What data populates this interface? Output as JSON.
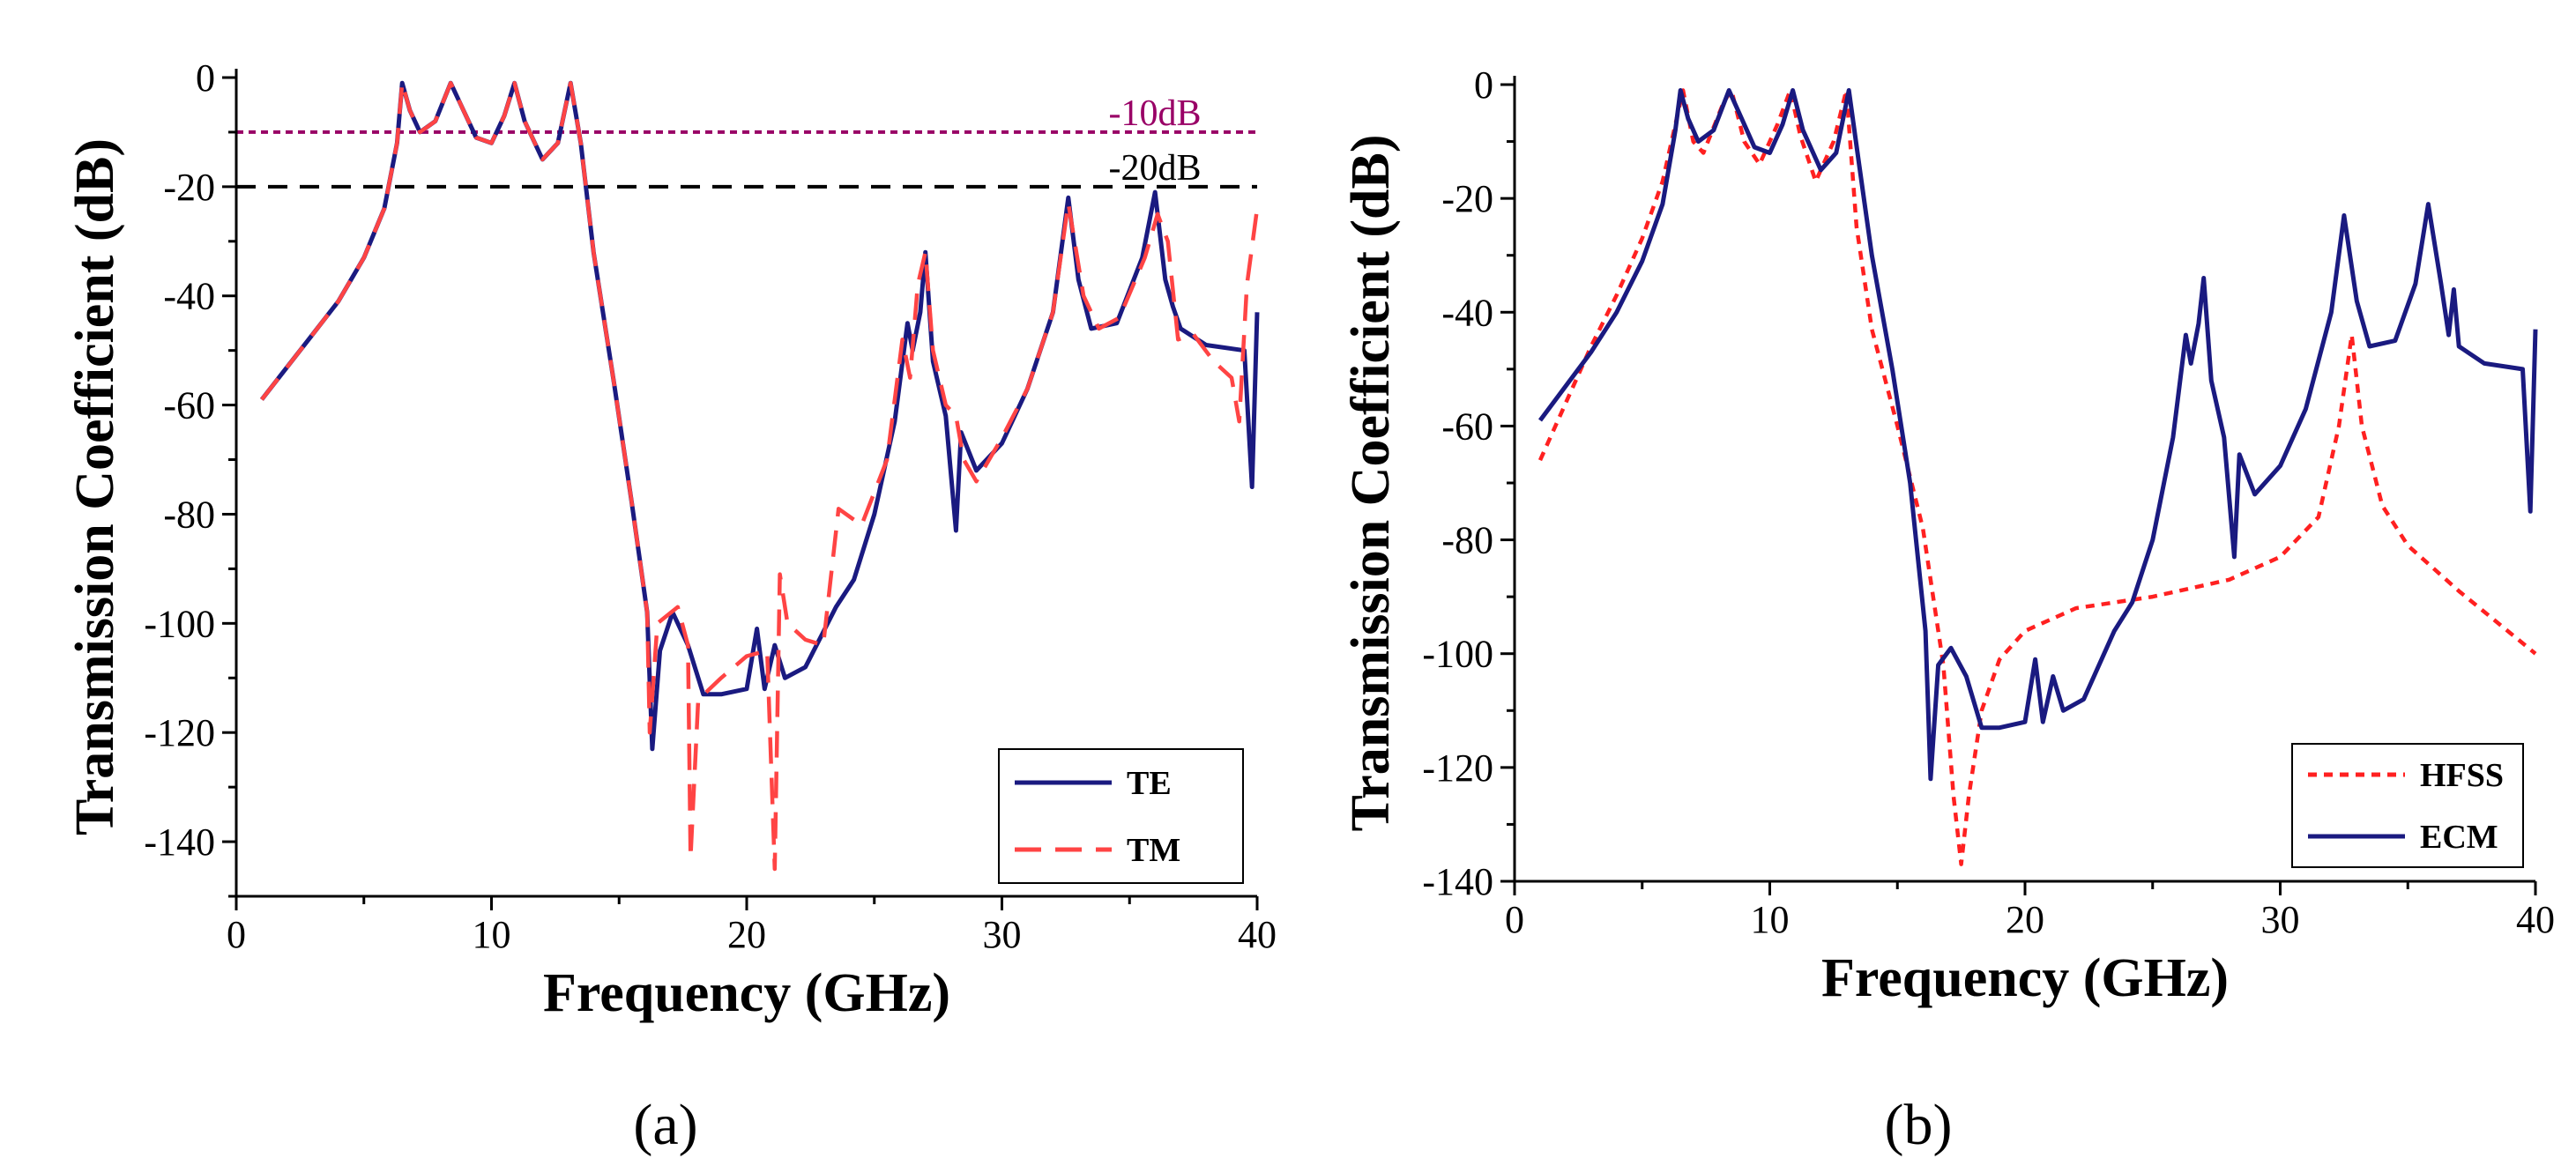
{
  "figure": {
    "captions": [
      "(a)",
      "(b)"
    ]
  },
  "chart_data": [
    {
      "type": "line",
      "panel_label": "(a)",
      "xlabel": "Frequency (GHz)",
      "ylabel": "Transmission Coefficient (dB)",
      "xlim": [
        0,
        40
      ],
      "ylim": [
        -150,
        0
      ],
      "xticks": [
        0,
        10,
        20,
        30,
        40
      ],
      "yticks": [
        0,
        -20,
        -40,
        -60,
        -80,
        -100,
        -120,
        -140
      ],
      "legend_position": "bottom-right",
      "reference_lines": [
        {
          "label": "-10dB",
          "value": -10,
          "color": "#990066",
          "style": "dotted"
        },
        {
          "label": "-20dB",
          "value": -20,
          "color": "#000000",
          "style": "dashed"
        }
      ],
      "series": [
        {
          "name": "TE",
          "color": "#1a1a80",
          "style": "solid",
          "points": [
            [
              1,
              -59
            ],
            [
              2,
              -53
            ],
            [
              3,
              -47
            ],
            [
              4,
              -41
            ],
            [
              5,
              -33
            ],
            [
              5.8,
              -24
            ],
            [
              6.3,
              -12
            ],
            [
              6.5,
              -1
            ],
            [
              6.8,
              -6
            ],
            [
              7.2,
              -10
            ],
            [
              7.8,
              -8
            ],
            [
              8.4,
              -1
            ],
            [
              8.8,
              -5
            ],
            [
              9.4,
              -11
            ],
            [
              10,
              -12
            ],
            [
              10.5,
              -7
            ],
            [
              10.9,
              -1
            ],
            [
              11.3,
              -8
            ],
            [
              12,
              -15
            ],
            [
              12.6,
              -12
            ],
            [
              13.1,
              -1
            ],
            [
              13.5,
              -12
            ],
            [
              14,
              -32
            ],
            [
              14.8,
              -56
            ],
            [
              15.5,
              -78
            ],
            [
              16.1,
              -98
            ],
            [
              16.3,
              -123
            ],
            [
              16.6,
              -105
            ],
            [
              17.1,
              -98
            ],
            [
              17.7,
              -104
            ],
            [
              18.3,
              -113
            ],
            [
              19,
              -113
            ],
            [
              20,
              -112
            ],
            [
              20.4,
              -101
            ],
            [
              20.7,
              -112
            ],
            [
              21.1,
              -104
            ],
            [
              21.5,
              -110
            ],
            [
              22.3,
              -108
            ],
            [
              23.5,
              -97
            ],
            [
              24.2,
              -92
            ],
            [
              25,
              -80
            ],
            [
              25.8,
              -63
            ],
            [
              26.3,
              -45
            ],
            [
              26.5,
              -50
            ],
            [
              26.8,
              -43
            ],
            [
              27,
              -32
            ],
            [
              27.3,
              -52
            ],
            [
              27.8,
              -62
            ],
            [
              28.2,
              -83
            ],
            [
              28.4,
              -65
            ],
            [
              29,
              -72
            ],
            [
              30,
              -67
            ],
            [
              31,
              -57
            ],
            [
              32,
              -43
            ],
            [
              32.6,
              -22
            ],
            [
              33,
              -37
            ],
            [
              33.5,
              -46
            ],
            [
              34.5,
              -45
            ],
            [
              35.5,
              -33
            ],
            [
              36,
              -21
            ],
            [
              36.4,
              -37
            ],
            [
              36.7,
              -42
            ],
            [
              37,
              -46
            ],
            [
              38,
              -49
            ],
            [
              39.5,
              -50
            ],
            [
              39.8,
              -75
            ],
            [
              40,
              -43
            ]
          ]
        },
        {
          "name": "TM",
          "color": "#ff4444",
          "style": "dashed",
          "points": [
            [
              1,
              -59
            ],
            [
              2,
              -53
            ],
            [
              3,
              -47
            ],
            [
              4,
              -41
            ],
            [
              5,
              -33
            ],
            [
              5.8,
              -24
            ],
            [
              6.3,
              -12
            ],
            [
              6.5,
              -1
            ],
            [
              6.8,
              -6
            ],
            [
              7.2,
              -10
            ],
            [
              7.8,
              -8
            ],
            [
              8.4,
              -1
            ],
            [
              8.8,
              -5
            ],
            [
              9.4,
              -11
            ],
            [
              10,
              -12
            ],
            [
              10.5,
              -7
            ],
            [
              10.9,
              -1
            ],
            [
              11.3,
              -8
            ],
            [
              12,
              -15
            ],
            [
              12.6,
              -12
            ],
            [
              13.1,
              -1
            ],
            [
              13.5,
              -12
            ],
            [
              14,
              -32
            ],
            [
              14.8,
              -56
            ],
            [
              15.5,
              -78
            ],
            [
              16.1,
              -98
            ],
            [
              16.2,
              -120
            ],
            [
              16.5,
              -100
            ],
            [
              17.3,
              -97
            ],
            [
              17.7,
              -104
            ],
            [
              17.8,
              -143
            ],
            [
              18.1,
              -114
            ],
            [
              19,
              -110
            ],
            [
              20,
              -106
            ],
            [
              20.8,
              -105
            ],
            [
              21.1,
              -145
            ],
            [
              21.3,
              -91
            ],
            [
              21.6,
              -100
            ],
            [
              22.3,
              -103
            ],
            [
              23,
              -104
            ],
            [
              23.6,
              -79
            ],
            [
              24.5,
              -82
            ],
            [
              25.5,
              -70
            ],
            [
              26.1,
              -48
            ],
            [
              26.4,
              -55
            ],
            [
              26.7,
              -38
            ],
            [
              27,
              -32
            ],
            [
              27.3,
              -50
            ],
            [
              27.8,
              -60
            ],
            [
              28.2,
              -62
            ],
            [
              28.5,
              -70
            ],
            [
              29,
              -74
            ],
            [
              30,
              -66
            ],
            [
              31,
              -57
            ],
            [
              32,
              -43
            ],
            [
              32.6,
              -23
            ],
            [
              33.2,
              -40
            ],
            [
              33.8,
              -46
            ],
            [
              34.6,
              -44
            ],
            [
              35.6,
              -33
            ],
            [
              36.1,
              -25
            ],
            [
              36.5,
              -30
            ],
            [
              36.9,
              -48
            ],
            [
              37.5,
              -47
            ],
            [
              38.3,
              -52
            ],
            [
              39,
              -55
            ],
            [
              39.3,
              -63
            ],
            [
              39.6,
              -38
            ],
            [
              40,
              -24
            ]
          ]
        }
      ]
    },
    {
      "type": "line",
      "panel_label": "(b)",
      "xlabel": "Frequency (GHz)",
      "ylabel": "Transmission Coefficient (dB)",
      "xlim": [
        0,
        40
      ],
      "ylim": [
        -140,
        0
      ],
      "xticks": [
        0,
        10,
        20,
        30,
        40
      ],
      "yticks": [
        0,
        -20,
        -40,
        -60,
        -80,
        -100,
        -120,
        -140
      ],
      "legend_position": "bottom-right",
      "series": [
        {
          "name": "HFSS",
          "color": "#ff2020",
          "style": "dotted",
          "points": [
            [
              1,
              -66
            ],
            [
              2,
              -56
            ],
            [
              3,
              -46
            ],
            [
              4,
              -37
            ],
            [
              5,
              -27
            ],
            [
              5.8,
              -17
            ],
            [
              6.3,
              -7
            ],
            [
              6.6,
              -1
            ],
            [
              7,
              -10
            ],
            [
              7.4,
              -12
            ],
            [
              8.2,
              -3
            ],
            [
              8.5,
              -1
            ],
            [
              9,
              -10
            ],
            [
              9.6,
              -14
            ],
            [
              10.3,
              -7
            ],
            [
              10.8,
              -1
            ],
            [
              11.2,
              -9
            ],
            [
              11.8,
              -17
            ],
            [
              12.5,
              -10
            ],
            [
              13,
              -1
            ],
            [
              13.4,
              -25
            ],
            [
              14,
              -43
            ],
            [
              15,
              -60
            ],
            [
              16,
              -78
            ],
            [
              16.8,
              -102
            ],
            [
              17.2,
              -125
            ],
            [
              17.5,
              -137
            ],
            [
              17.8,
              -125
            ],
            [
              18.3,
              -110
            ],
            [
              19,
              -101
            ],
            [
              20,
              -96
            ],
            [
              22,
              -92
            ],
            [
              25,
              -90
            ],
            [
              28,
              -87
            ],
            [
              30,
              -83
            ],
            [
              31.5,
              -76
            ],
            [
              32.3,
              -60
            ],
            [
              32.8,
              -44
            ],
            [
              33.2,
              -60
            ],
            [
              34,
              -74
            ],
            [
              35,
              -81
            ],
            [
              37,
              -89
            ],
            [
              40,
              -100
            ]
          ]
        },
        {
          "name": "ECM",
          "color": "#1a1a80",
          "style": "solid",
          "points": [
            [
              1,
              -59
            ],
            [
              2,
              -53
            ],
            [
              3,
              -47
            ],
            [
              4,
              -40
            ],
            [
              5,
              -31
            ],
            [
              5.8,
              -21
            ],
            [
              6.3,
              -8
            ],
            [
              6.5,
              -1
            ],
            [
              6.8,
              -6
            ],
            [
              7.2,
              -10
            ],
            [
              7.8,
              -8
            ],
            [
              8.4,
              -1
            ],
            [
              8.8,
              -5
            ],
            [
              9.4,
              -11
            ],
            [
              10,
              -12
            ],
            [
              10.5,
              -7
            ],
            [
              10.9,
              -1
            ],
            [
              11.3,
              -8
            ],
            [
              12,
              -15
            ],
            [
              12.6,
              -12
            ],
            [
              13.1,
              -1
            ],
            [
              13.5,
              -14
            ],
            [
              14,
              -30
            ],
            [
              14.8,
              -50
            ],
            [
              15.5,
              -70
            ],
            [
              16.1,
              -96
            ],
            [
              16.3,
              -122
            ],
            [
              16.6,
              -102
            ],
            [
              17.1,
              -99
            ],
            [
              17.7,
              -104
            ],
            [
              18.3,
              -113
            ],
            [
              19,
              -113
            ],
            [
              20,
              -112
            ],
            [
              20.4,
              -101
            ],
            [
              20.7,
              -112
            ],
            [
              21.1,
              -104
            ],
            [
              21.5,
              -110
            ],
            [
              22.3,
              -108
            ],
            [
              23.5,
              -96
            ],
            [
              24.2,
              -91
            ],
            [
              25,
              -80
            ],
            [
              25.8,
              -62
            ],
            [
              26.3,
              -44
            ],
            [
              26.5,
              -49
            ],
            [
              26.8,
              -42
            ],
            [
              27,
              -34
            ],
            [
              27.3,
              -52
            ],
            [
              27.8,
              -62
            ],
            [
              28.2,
              -83
            ],
            [
              28.4,
              -65
            ],
            [
              29,
              -72
            ],
            [
              30,
              -67
            ],
            [
              31,
              -57
            ],
            [
              32,
              -40
            ],
            [
              32.5,
              -23
            ],
            [
              33,
              -38
            ],
            [
              33.5,
              -46
            ],
            [
              34.5,
              -45
            ],
            [
              35.3,
              -35
            ],
            [
              35.8,
              -21
            ],
            [
              36.3,
              -35
            ],
            [
              36.6,
              -44
            ],
            [
              36.8,
              -36
            ],
            [
              37,
              -46
            ],
            [
              38,
              -49
            ],
            [
              39.5,
              -50
            ],
            [
              39.8,
              -75
            ],
            [
              40,
              -43
            ]
          ]
        }
      ]
    }
  ]
}
